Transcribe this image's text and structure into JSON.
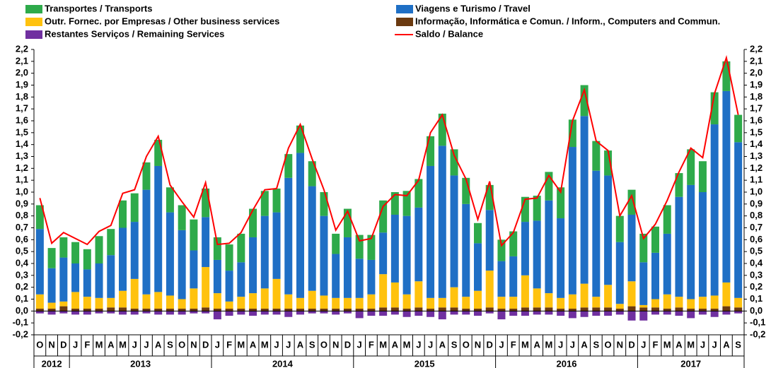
{
  "chart_data": {
    "type": "bar",
    "stacked": true,
    "categories": [
      "O",
      "N",
      "D",
      "J",
      "F",
      "M",
      "A",
      "M",
      "J",
      "J",
      "A",
      "S",
      "O",
      "N",
      "D",
      "J",
      "F",
      "M",
      "A",
      "M",
      "J",
      "J",
      "A",
      "S",
      "O",
      "N",
      "D",
      "J",
      "F",
      "M",
      "A",
      "M",
      "J",
      "J",
      "A",
      "S",
      "O",
      "N",
      "D",
      "J",
      "F",
      "M",
      "A",
      "M",
      "J",
      "J",
      "A",
      "S",
      "O",
      "N",
      "D",
      "J",
      "F",
      "M",
      "A",
      "M",
      "J",
      "J",
      "A",
      "S"
    ],
    "years": [
      "2012",
      "2013",
      "2014",
      "2015",
      "2016",
      "2017"
    ],
    "ylim": [
      -0.2,
      2.2
    ],
    "yticks": [
      {
        "value": -0.2,
        "label": "-0,2"
      },
      {
        "value": -0.1,
        "label": "-0,1"
      },
      {
        "value": 0,
        "label": "0,0"
      },
      {
        "value": 0.1,
        "label": "0,1"
      },
      {
        "value": 0.2,
        "label": "0,2"
      },
      {
        "value": 0.3,
        "label": "0,3"
      },
      {
        "value": 0.4,
        "label": "0,4"
      },
      {
        "value": 0.5,
        "label": "0,5"
      },
      {
        "value": 0.6,
        "label": "0,6"
      },
      {
        "value": 0.7,
        "label": "0,7"
      },
      {
        "value": 0.8,
        "label": "0,8"
      },
      {
        "value": 0.9,
        "label": "0,9"
      },
      {
        "value": 1.0,
        "label": "1,0"
      },
      {
        "value": 1.1,
        "label": "1,1"
      },
      {
        "value": 1.2,
        "label": "1,2"
      },
      {
        "value": 1.3,
        "label": "1,3"
      },
      {
        "value": 1.4,
        "label": "1,4"
      },
      {
        "value": 1.5,
        "label": "1,5"
      },
      {
        "value": 1.6,
        "label": "1,6"
      },
      {
        "value": 1.7,
        "label": "1,7"
      },
      {
        "value": 1.8,
        "label": "1,8"
      },
      {
        "value": 1.9,
        "label": "1,9"
      },
      {
        "value": 2.0,
        "label": "2,0"
      },
      {
        "value": 2.1,
        "label": "2,1"
      },
      {
        "value": 2.2,
        "label": "2,2"
      }
    ],
    "series": [
      {
        "name": "Transportes / Transports",
        "color": "#2eaa4a",
        "stack_order": 3,
        "values": [
          0.2,
          0.17,
          0.17,
          0.18,
          0.17,
          0.23,
          0.22,
          0.23,
          0.24,
          0.23,
          0.22,
          0.21,
          0.21,
          0.26,
          0.24,
          0.19,
          0.22,
          0.24,
          0.24,
          0.21,
          0.2,
          0.2,
          0.23,
          0.21,
          0.2,
          0.17,
          0.24,
          0.2,
          0.21,
          0.27,
          0.19,
          0.21,
          0.24,
          0.25,
          0.27,
          0.22,
          0.22,
          0.17,
          0.21,
          0.18,
          0.21,
          0.21,
          0.21,
          0.24,
          0.26,
          0.23,
          0.26,
          0.25,
          0.21,
          0.22,
          0.21,
          0.24,
          0.22,
          0.24,
          0.2,
          0.3,
          0.26,
          0.27,
          0.25,
          0.23
        ]
      },
      {
        "name": "Viagens e Turismo / Travel",
        "color": "#1f6fc5",
        "stack_order": 2,
        "values": [
          0.55,
          0.29,
          0.37,
          0.24,
          0.23,
          0.29,
          0.36,
          0.53,
          0.48,
          0.88,
          1.06,
          0.7,
          0.58,
          0.32,
          0.42,
          0.28,
          0.26,
          0.29,
          0.47,
          0.61,
          0.56,
          0.98,
          1.22,
          0.88,
          0.67,
          0.37,
          0.51,
          0.33,
          0.29,
          0.35,
          0.57,
          0.66,
          0.62,
          1.11,
          1.28,
          0.94,
          0.78,
          0.4,
          0.51,
          0.3,
          0.34,
          0.45,
          0.57,
          0.78,
          0.67,
          1.24,
          1.41,
          1.06,
          0.92,
          0.52,
          0.56,
          0.36,
          0.39,
          0.51,
          0.84,
          0.96,
          0.88,
          1.44,
          1.61,
          1.31
        ]
      },
      {
        "name": "Outr. Fornec. por Empresas  / Other business services",
        "color": "#ffc20e",
        "stack_order": 1,
        "values": [
          0.12,
          0.05,
          0.04,
          0.14,
          0.1,
          0.09,
          0.08,
          0.14,
          0.25,
          0.12,
          0.14,
          0.11,
          0.08,
          0.17,
          0.34,
          0.13,
          0.06,
          0.1,
          0.13,
          0.17,
          0.25,
          0.12,
          0.09,
          0.15,
          0.11,
          0.09,
          0.09,
          0.09,
          0.12,
          0.28,
          0.21,
          0.12,
          0.22,
          0.09,
          0.08,
          0.17,
          0.1,
          0.15,
          0.31,
          0.1,
          0.1,
          0.27,
          0.16,
          0.12,
          0.09,
          0.12,
          0.2,
          0.09,
          0.19,
          0.04,
          0.21,
          0.02,
          0.07,
          0.12,
          0.09,
          0.08,
          0.1,
          0.11,
          0.2,
          0.08
        ]
      },
      {
        "name": "Informação, Informática e Comun. / Inform., Computers and Commun.",
        "color": "#6b3a10",
        "stack_order": 0,
        "values": [
          0.02,
          0.02,
          0.04,
          0.02,
          0.02,
          0.02,
          0.03,
          0.03,
          0.02,
          0.02,
          0.02,
          0.02,
          0.02,
          0.02,
          0.03,
          0.02,
          0.02,
          0.02,
          0.02,
          0.02,
          0.02,
          0.02,
          0.02,
          0.02,
          0.02,
          0.02,
          0.02,
          0.02,
          0.02,
          0.03,
          0.03,
          0.02,
          0.03,
          0.02,
          0.03,
          0.03,
          0.02,
          0.02,
          0.03,
          0.02,
          0.02,
          0.03,
          0.03,
          0.03,
          0.02,
          0.02,
          0.03,
          0.03,
          0.03,
          0.02,
          0.04,
          0.03,
          0.03,
          0.02,
          0.03,
          0.02,
          0.02,
          0.02,
          0.04,
          0.03
        ]
      },
      {
        "name": "Restantes Serviços / Remaining Services",
        "color": "#7030a0",
        "stack_order": 0,
        "values": [
          -0.02,
          -0.03,
          -0.02,
          -0.03,
          -0.03,
          -0.02,
          -0.02,
          -0.03,
          -0.03,
          -0.02,
          -0.03,
          -0.03,
          -0.03,
          -0.02,
          -0.02,
          -0.07,
          -0.04,
          -0.03,
          -0.04,
          -0.03,
          -0.03,
          -0.05,
          -0.03,
          -0.02,
          -0.02,
          -0.03,
          -0.02,
          -0.06,
          -0.04,
          -0.04,
          -0.03,
          -0.05,
          -0.04,
          -0.05,
          -0.07,
          -0.03,
          -0.03,
          -0.04,
          -0.02,
          -0.07,
          -0.04,
          -0.04,
          -0.03,
          -0.03,
          -0.04,
          -0.06,
          -0.05,
          -0.04,
          -0.04,
          -0.03,
          -0.08,
          -0.08,
          -0.03,
          -0.03,
          -0.04,
          -0.06,
          -0.03,
          -0.05,
          -0.03,
          -0.02
        ]
      },
      {
        "name": "Saldo / Balance",
        "color": "#ff0000",
        "type": "line",
        "values": [
          0.95,
          0.57,
          0.66,
          0.61,
          0.56,
          0.67,
          0.72,
          0.99,
          1.02,
          1.3,
          1.47,
          1.06,
          0.92,
          0.79,
          1.08,
          0.56,
          0.57,
          0.66,
          0.85,
          1.02,
          1.03,
          1.37,
          1.57,
          1.28,
          1.02,
          0.68,
          0.84,
          0.59,
          0.61,
          0.88,
          0.98,
          0.97,
          1.1,
          1.5,
          1.65,
          1.31,
          1.11,
          0.77,
          1.09,
          0.55,
          0.66,
          0.94,
          0.95,
          1.14,
          1.0,
          1.6,
          1.86,
          1.43,
          1.35,
          0.8,
          0.97,
          0.61,
          0.73,
          0.93,
          1.17,
          1.37,
          1.29,
          1.83,
          2.13,
          1.65
        ]
      }
    ]
  }
}
